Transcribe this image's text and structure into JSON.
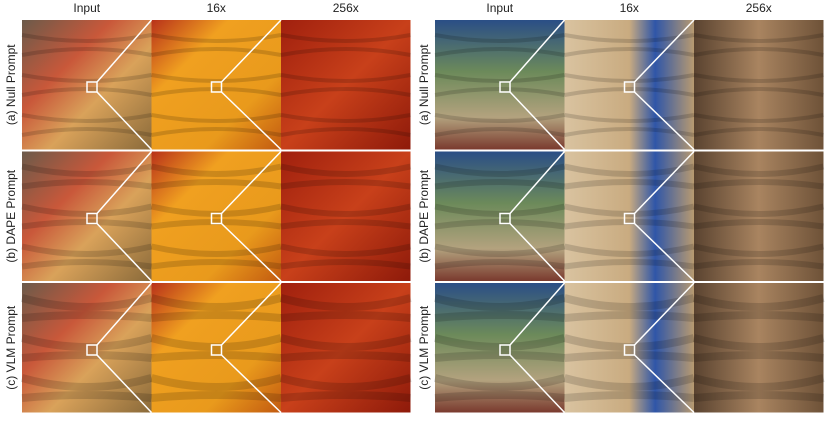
{
  "panels": [
    {
      "columns": [
        "Input",
        "16x",
        "256x"
      ],
      "rows": [
        "(a) Null Prompt",
        "(b) DAPE Prompt",
        "(c) VLM Prompt"
      ]
    },
    {
      "columns": [
        "Input",
        "16x",
        "256x"
      ],
      "rows": [
        "(a) Null Prompt",
        "(b) DAPE Prompt",
        "(c) VLM Prompt"
      ]
    }
  ]
}
